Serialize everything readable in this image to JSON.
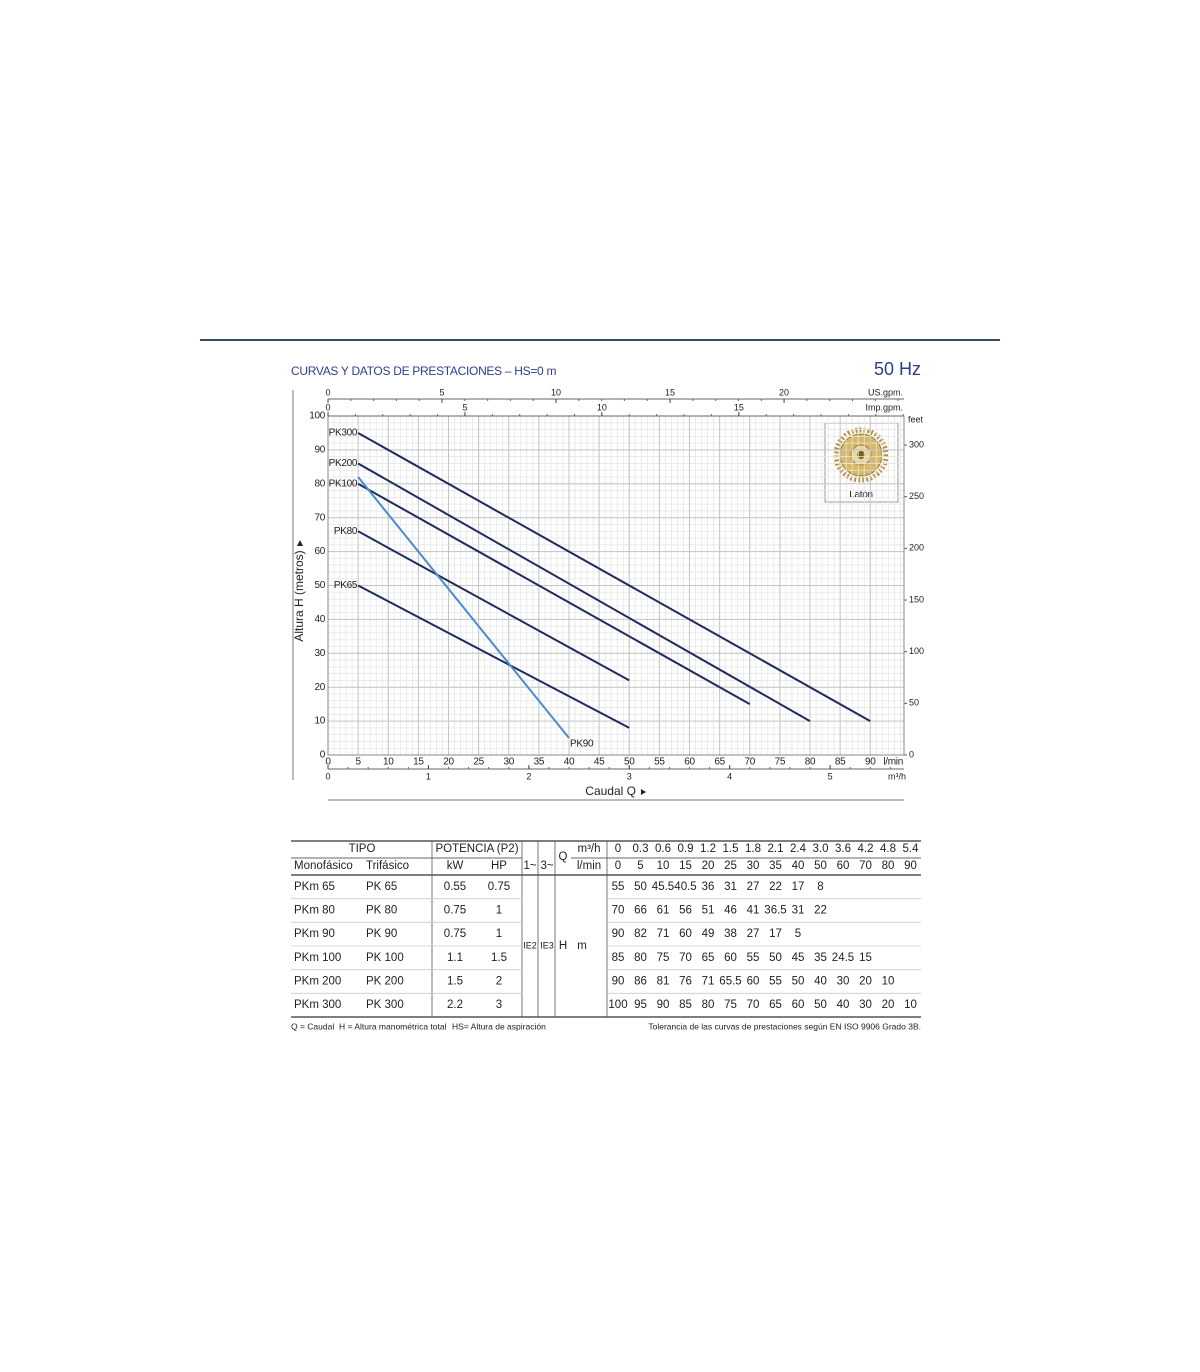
{
  "chart_data": {
    "type": "line",
    "title": "CURVAS Y DATOS DE PRESTACIONES – HS=0 m",
    "frequency": "50 Hz",
    "x_label": "Caudal Q",
    "y_label": "Altura H (metros)",
    "x_unit": "l/min",
    "xlim": [
      0,
      95.6
    ],
    "xticks": [
      0,
      5,
      10,
      15,
      20,
      25,
      30,
      35,
      40,
      45,
      50,
      55,
      60,
      65,
      70,
      75,
      80,
      85,
      90
    ],
    "ylim": [
      0,
      100
    ],
    "yticks": [
      0,
      10,
      20,
      30,
      40,
      50,
      60,
      70,
      80,
      90,
      100
    ],
    "y2_unit": "feet",
    "y2lim": [
      0,
      328.08
    ],
    "y2ticks": [
      0,
      50,
      100,
      150,
      200,
      250,
      300
    ],
    "secondary_x_axes": [
      {
        "unit": "US.gpm.",
        "lim": [
          0,
          25.26
        ],
        "ticks": [
          0,
          5,
          10,
          15,
          20
        ]
      },
      {
        "unit": "Imp.gpm.",
        "lim": [
          0,
          21.03
        ],
        "ticks": [
          0,
          5,
          10,
          15
        ]
      },
      {
        "unit": "m³/h",
        "lim": [
          0,
          5.736
        ],
        "ticks": [
          0,
          1,
          2,
          3,
          4,
          5
        ]
      }
    ],
    "grid": true,
    "inset_label": "Latón",
    "series": [
      {
        "name": "PK300",
        "color": "#1f2b5e",
        "x": [
          5,
          90
        ],
        "values": [
          95,
          10
        ]
      },
      {
        "name": "PK200",
        "color": "#1f2b5e",
        "x": [
          5,
          80
        ],
        "values": [
          86,
          10
        ]
      },
      {
        "name": "PK100",
        "color": "#1f2b5e",
        "x": [
          5,
          70
        ],
        "values": [
          80,
          15
        ]
      },
      {
        "name": "PK80",
        "color": "#1f2b5e",
        "x": [
          5,
          50
        ],
        "values": [
          66,
          22
        ]
      },
      {
        "name": "PK65",
        "color": "#1f2b5e",
        "x": [
          5,
          50
        ],
        "values": [
          50,
          8
        ]
      },
      {
        "name": "PK90",
        "color": "#4a8ccb",
        "x": [
          5,
          40
        ],
        "values": [
          82,
          5
        ]
      }
    ]
  },
  "table": {
    "header": {
      "tipo": "TIPO",
      "potencia": "POTENCIA (P2)",
      "q": "Q",
      "m3h_unit": "m³/h",
      "m3h": [
        "0",
        "0.3",
        "0.6",
        "0.9",
        "1.2",
        "1.5",
        "1.8",
        "2.1",
        "2.4",
        "3.0",
        "3.6",
        "4.2",
        "4.8",
        "5.4"
      ],
      "mono": "Monofásico",
      "tri": "Trifásico",
      "kw": "kW",
      "hp": "HP",
      "ph1": "1~",
      "ph3": "3~",
      "lmin_unit": "l/min",
      "lmin": [
        0,
        5,
        10,
        15,
        20,
        25,
        30,
        35,
        40,
        50,
        60,
        70,
        80,
        90
      ]
    },
    "ie2": "IE2",
    "ie3": "IE3",
    "h": "H",
    "m": "m",
    "rows": [
      {
        "mono": "PKm 65",
        "tri": "PK 65",
        "kw": 0.55,
        "hp": 0.75,
        "h": [
          55,
          50,
          45.5,
          40.5,
          36,
          31,
          27,
          22,
          17,
          8
        ]
      },
      {
        "mono": "PKm 80",
        "tri": "PK 80",
        "kw": 0.75,
        "hp": 1,
        "h": [
          70,
          66,
          61,
          56,
          51,
          46,
          41,
          36.5,
          31,
          22
        ]
      },
      {
        "mono": "PKm 90",
        "tri": "PK 90",
        "kw": 0.75,
        "hp": 1,
        "h": [
          90,
          82,
          71,
          60,
          49,
          38,
          27,
          17,
          5
        ]
      },
      {
        "mono": "PKm 100",
        "tri": "PK 100",
        "kw": 1.1,
        "hp": 1.5,
        "h": [
          85,
          80,
          75,
          70,
          65,
          60,
          55,
          50,
          45,
          35,
          24.5,
          15
        ]
      },
      {
        "mono": "PKm 200",
        "tri": "PK 200",
        "kw": 1.5,
        "hp": 2,
        "h": [
          90,
          86,
          81,
          76,
          71,
          65.5,
          60,
          55,
          50,
          40,
          30,
          20,
          10
        ]
      },
      {
        "mono": "PKm 300",
        "tri": "PK 300",
        "kw": 2.2,
        "hp": 3,
        "h": [
          100,
          95,
          90,
          85,
          80,
          75,
          70,
          65,
          60,
          50,
          40,
          30,
          20,
          10
        ]
      }
    ]
  },
  "footer": {
    "q": "Q = Caudal",
    "h": "H = Altura manométrica total",
    "hs": "HS= Altura de aspiración",
    "tolerance": "Tolerancia de las curvas de prestaciones según EN ISO 9906 Grado 3B."
  }
}
